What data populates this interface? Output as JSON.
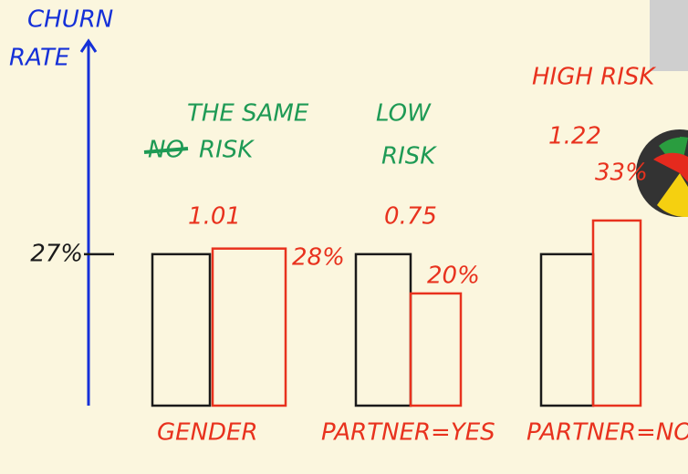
{
  "chart_data": {
    "type": "bar",
    "y_label_lines": [
      "CHURN",
      "RATE"
    ],
    "categories": [
      "GENDER",
      "PARTNER=YES",
      "PARTNER=NO"
    ],
    "series": [
      {
        "color": "#1a1a1a",
        "values": [
          27,
          27,
          27
        ]
      },
      {
        "color": "#e8321e",
        "values": [
          28,
          20,
          33
        ],
        "value_labels": [
          "28%",
          "20%",
          "33%"
        ]
      }
    ],
    "ratios": [
      1.01,
      0.75,
      1.22
    ],
    "ratio_color": "#e8321e",
    "annotations": [
      {
        "top": "THE SAME",
        "struck": "NO",
        "bottom": "RISK",
        "color": "#1e9a55"
      },
      {
        "top": "LOW",
        "bottom": "RISK",
        "color": "#1e9a55"
      },
      {
        "top": "HIGH RISK",
        "color": "#e8321e"
      }
    ],
    "axis_color": "#1530d8",
    "category_color": "#e8321e",
    "ylim": [
      0,
      65
    ],
    "yticks": [
      {
        "value": 27,
        "label": "27%"
      }
    ]
  }
}
